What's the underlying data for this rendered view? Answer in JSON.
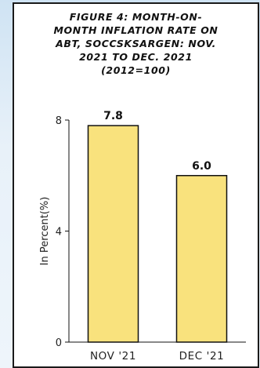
{
  "chart_data": {
    "type": "bar",
    "title": "FIGURE 4: MONTH-ON-\nMONTH INFLATION RATE ON\nABT, SOCCSKSARGEN: NOV.\n2021 TO DEC. 2021\n(2012=100)",
    "categories": [
      "NOV '21",
      "DEC '21"
    ],
    "values": [
      7.8,
      6.0
    ],
    "value_labels": [
      "7.8",
      "6.0"
    ],
    "xlabel": "",
    "ylabel": "In Percent(%)",
    "ylim": [
      0,
      8
    ],
    "yticks": [
      0,
      4,
      8
    ],
    "ytick_labels": [
      "0",
      "4",
      "8"
    ],
    "grid": false,
    "legend": "none",
    "colors": {
      "bar_fill": "#f9e27d",
      "bar_stroke": "#111111",
      "axis": "#111111"
    }
  }
}
